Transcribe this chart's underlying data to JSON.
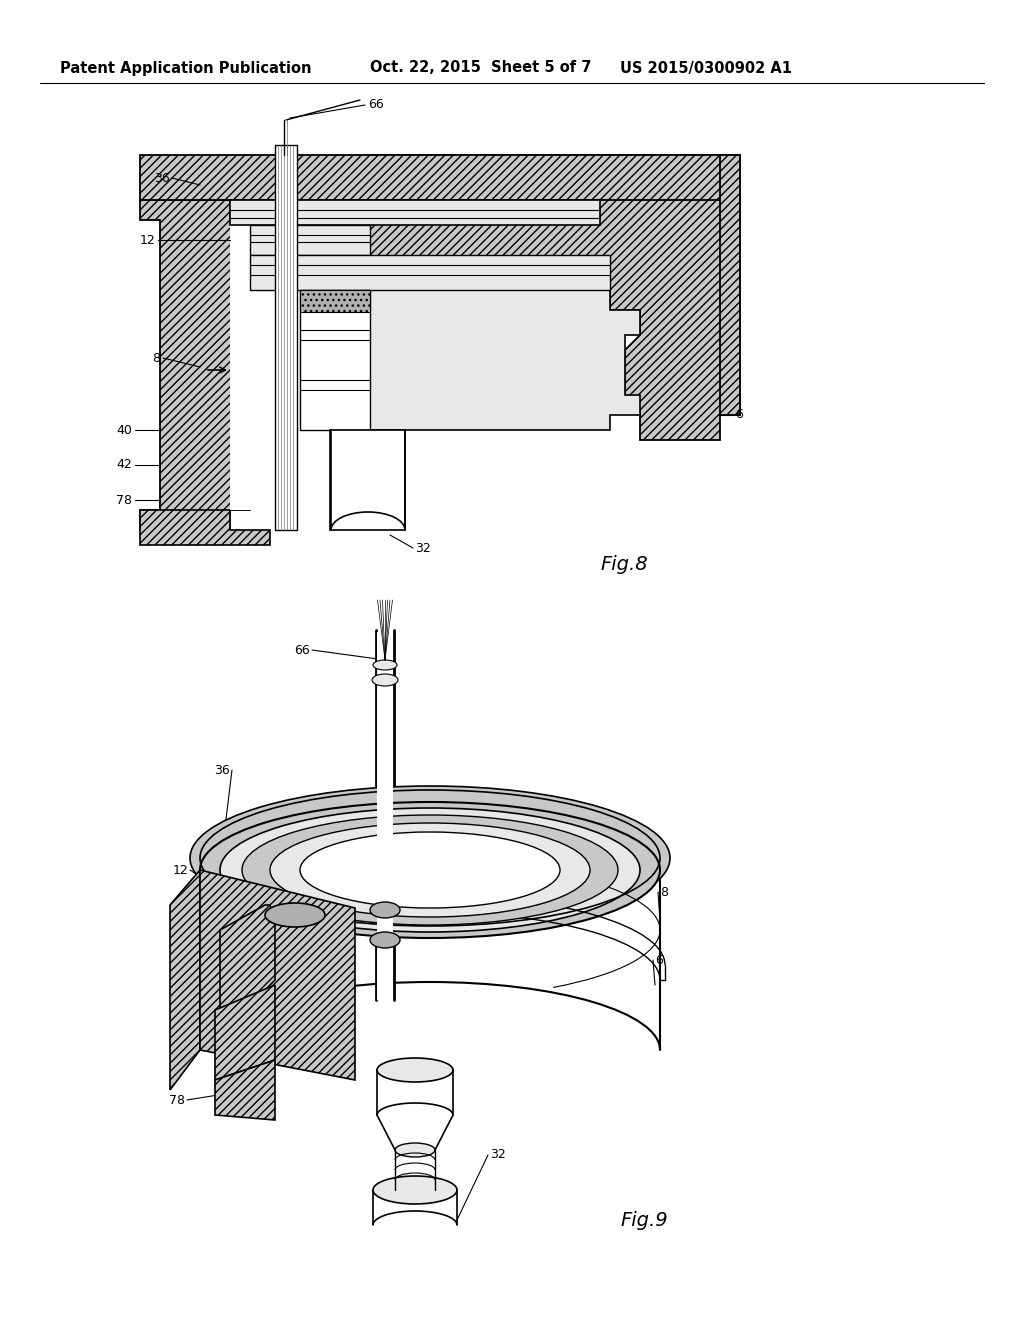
{
  "background_color": "#ffffff",
  "header_left": "Patent Application Publication",
  "header_center": "Oct. 22, 2015  Sheet 5 of 7",
  "header_right": "US 2015/0300902 A1",
  "header_fontsize": 10.5,
  "fig8_label": "Fig.8",
  "fig9_label": "Fig.9",
  "drawing_color": "#000000",
  "hatch_lw": 0.5,
  "body_gray": "#c8c8c8",
  "light_gray": "#e8e8e8",
  "mid_gray": "#b0b0b0"
}
